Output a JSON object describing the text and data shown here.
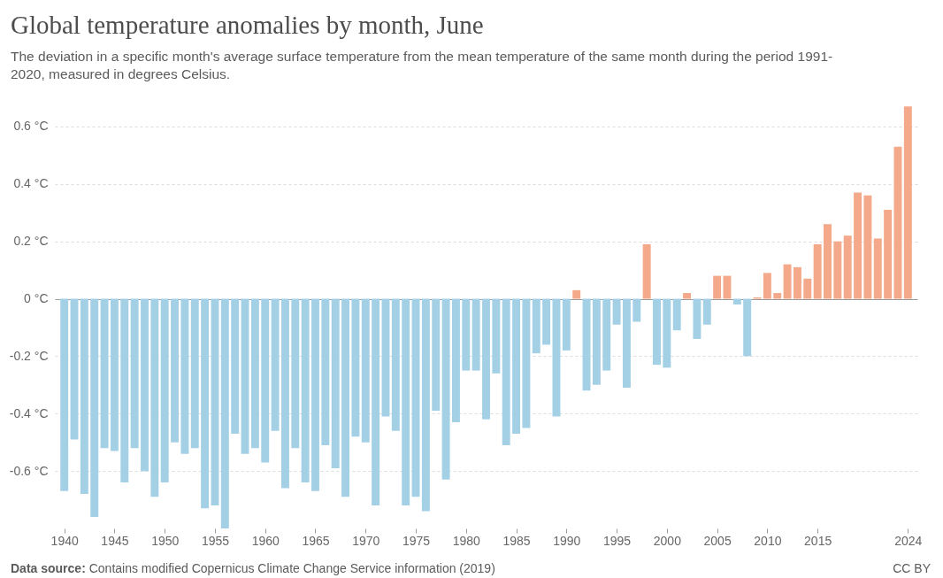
{
  "chart_data": {
    "type": "bar",
    "title": "Global temperature anomalies by month, June",
    "subtitle": "The deviation in a specific month's average surface temperature from the mean temperature of the same month during the period 1991-2020, measured in degrees Celsius.",
    "annotations": [
      "Data source: Contains modified Copernicus Climate Change Service information (2019)",
      "CC BY"
    ],
    "x": [
      1940,
      1941,
      1942,
      1943,
      1944,
      1945,
      1946,
      1947,
      1948,
      1949,
      1950,
      1951,
      1952,
      1953,
      1954,
      1955,
      1956,
      1957,
      1958,
      1959,
      1960,
      1961,
      1962,
      1963,
      1964,
      1965,
      1966,
      1967,
      1968,
      1969,
      1970,
      1971,
      1972,
      1973,
      1974,
      1975,
      1976,
      1977,
      1978,
      1979,
      1980,
      1981,
      1982,
      1983,
      1984,
      1985,
      1986,
      1987,
      1988,
      1989,
      1990,
      1991,
      1992,
      1993,
      1994,
      1995,
      1996,
      1997,
      1998,
      1999,
      2000,
      2001,
      2002,
      2003,
      2004,
      2005,
      2006,
      2007,
      2008,
      2009,
      2010,
      2011,
      2012,
      2013,
      2014,
      2015,
      2016,
      2017,
      2018,
      2019,
      2020,
      2021,
      2022,
      2023,
      2024
    ],
    "values": [
      -0.67,
      -0.49,
      -0.68,
      -0.76,
      -0.52,
      -0.53,
      -0.64,
      -0.52,
      -0.6,
      -0.69,
      -0.64,
      -0.5,
      -0.54,
      -0.52,
      -0.73,
      -0.72,
      -0.8,
      -0.47,
      -0.54,
      -0.52,
      -0.57,
      -0.46,
      -0.66,
      -0.52,
      -0.64,
      -0.67,
      -0.51,
      -0.59,
      -0.69,
      -0.48,
      -0.5,
      -0.72,
      -0.41,
      -0.46,
      -0.72,
      -0.69,
      -0.74,
      -0.39,
      -0.63,
      -0.43,
      -0.25,
      -0.25,
      -0.42,
      -0.26,
      -0.51,
      -0.47,
      -0.45,
      -0.19,
      -0.16,
      -0.41,
      -0.18,
      0.03,
      -0.32,
      -0.3,
      -0.25,
      -0.09,
      -0.31,
      -0.08,
      0.19,
      -0.23,
      -0.24,
      -0.11,
      0.02,
      -0.14,
      -0.09,
      0.08,
      0.08,
      -0.02,
      -0.2,
      0.005,
      0.09,
      0.02,
      0.12,
      0.11,
      0.07,
      0.19,
      0.26,
      0.2,
      0.22,
      0.37,
      0.36,
      0.21,
      0.31,
      0.53,
      0.67
    ],
    "colors": [
      "#a4d0e6",
      "#a4d0e6",
      "#a4d0e6",
      "#a4d0e6",
      "#a4d0e6",
      "#a4d0e6",
      "#a4d0e6",
      "#a4d0e6",
      "#a4d0e6",
      "#a4d0e6",
      "#a4d0e6",
      "#a4d0e6",
      "#a4d0e6",
      "#a4d0e6",
      "#a4d0e6",
      "#a4d0e6",
      "#a4d0e6",
      "#a4d0e6",
      "#a4d0e6",
      "#a4d0e6",
      "#a4d0e6",
      "#a4d0e6",
      "#a4d0e6",
      "#a4d0e6",
      "#a4d0e6",
      "#a4d0e6",
      "#a4d0e6",
      "#a4d0e6",
      "#a4d0e6",
      "#a4d0e6",
      "#a4d0e6",
      "#a4d0e6",
      "#a4d0e6",
      "#a4d0e6",
      "#a4d0e6",
      "#a4d0e6",
      "#a4d0e6",
      "#a4d0e6",
      "#a4d0e6",
      "#a4d0e6",
      "#a4d0e6",
      "#a4d0e6",
      "#a4d0e6",
      "#a4d0e6",
      "#a4d0e6",
      "#a4d0e6",
      "#a4d0e6",
      "#a4d0e6",
      "#a4d0e6",
      "#a4d0e6",
      "#a4d0e6",
      "#f4aa8a",
      "#a4d0e6",
      "#a4d0e6",
      "#a4d0e6",
      "#a4d0e6",
      "#a4d0e6",
      "#a4d0e6",
      "#f4aa8a",
      "#a4d0e6",
      "#a4d0e6",
      "#a4d0e6",
      "#f4aa8a",
      "#a4d0e6",
      "#a4d0e6",
      "#f4aa8a",
      "#f4aa8a",
      "#a4d0e6",
      "#a4d0e6",
      "#f4aa8a",
      "#f4aa8a",
      "#f4aa8a",
      "#f4aa8a",
      "#f4aa8a",
      "#f4aa8a",
      "#f4aa8a",
      "#f4aa8a",
      "#f4aa8a",
      "#f4aa8a",
      "#f4aa8a",
      "#f4aa8a",
      "#f4aa8a",
      "#f4aa8a",
      "#f4aa8a",
      "#f4aa8a"
    ],
    "xlim": [
      1939.5,
      2024.5
    ],
    "xticks": [
      1940,
      1945,
      1950,
      1955,
      1960,
      1965,
      1970,
      1975,
      1980,
      1985,
      1990,
      1995,
      2000,
      2005,
      2010,
      2015,
      2024
    ],
    "ylim": [
      -0.8,
      0.68
    ],
    "yticks": [
      {
        "value": -0.6,
        "label": "-0.6 °C"
      },
      {
        "value": -0.4,
        "label": "-0.4 °C"
      },
      {
        "value": -0.2,
        "label": "-0.2 °C"
      },
      {
        "value": 0,
        "label": "0 °C"
      },
      {
        "value": 0.2,
        "label": "0.2 °C"
      },
      {
        "value": 0.4,
        "label": "0.4 °C"
      },
      {
        "value": 0.6,
        "label": "0.6 °C"
      }
    ],
    "grid": "y"
  }
}
